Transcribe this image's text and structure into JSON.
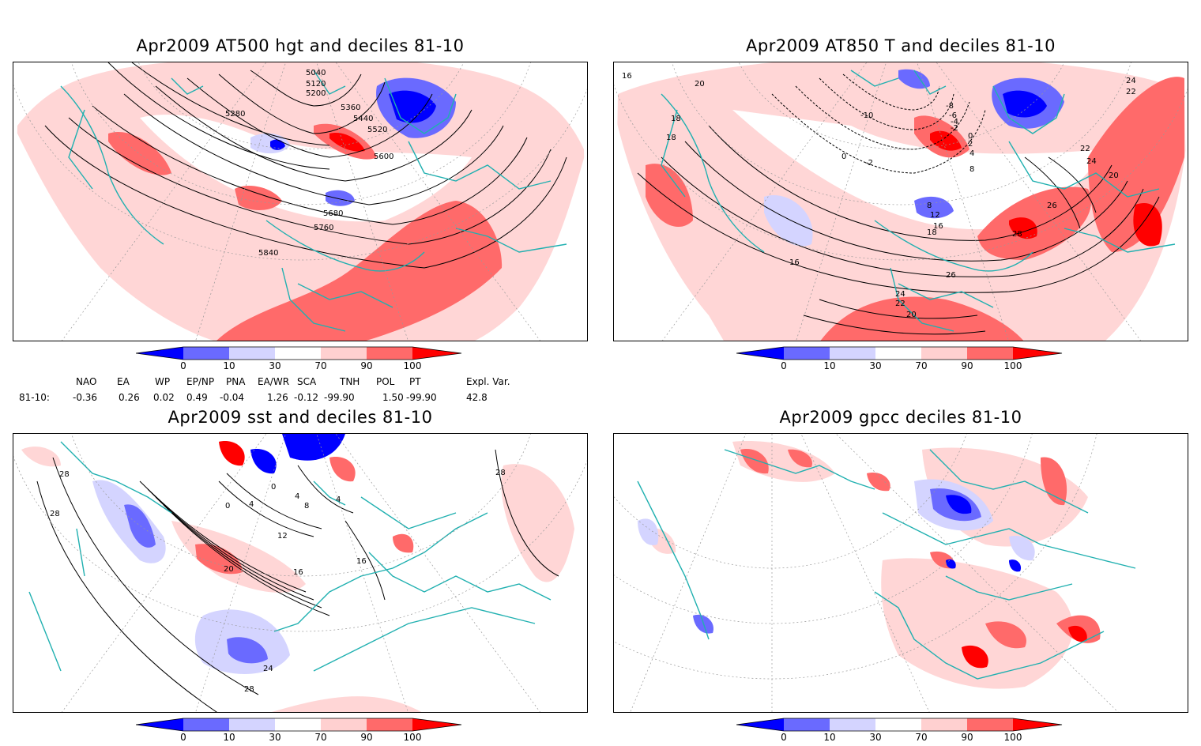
{
  "panels": [
    {
      "title": "Apr2009 AT500 hgt and deciles 81-10",
      "contour_labels": [
        "5040",
        "5120",
        "5200",
        "5280",
        "5360",
        "5440",
        "5520",
        "5600",
        "5680",
        "5760",
        "5840"
      ]
    },
    {
      "title": "Apr2009 AT850 T and deciles 81-10",
      "contour_labels": [
        "16",
        "20",
        "24",
        "22",
        "18",
        "18",
        "-10",
        "-8",
        "-6",
        "-4",
        "-2",
        "0",
        "2",
        "4",
        "8",
        "0",
        "-2",
        "8",
        "12",
        "16",
        "18",
        "16",
        "26",
        "28",
        "26",
        "24",
        "22",
        "20",
        "22",
        "24",
        "20"
      ]
    },
    {
      "title": "Apr2009 sst and deciles 81-10",
      "contour_labels": [
        "28",
        "28",
        "0",
        "4",
        "0",
        "4",
        "8",
        "4",
        "12",
        "16",
        "20",
        "16",
        "24",
        "28",
        "28"
      ]
    },
    {
      "title": "Apr2009 gpcc deciles 81-10",
      "contour_labels": []
    }
  ],
  "colorbar": {
    "labels": [
      "0",
      "10",
      "30",
      "70",
      "90",
      "100"
    ],
    "colors": [
      "#0000ff",
      "#6a6aff",
      "#d4d4ff",
      "#ffffff",
      "#ffd0d0",
      "#ff6a6a",
      "#ff0000"
    ]
  },
  "indices": {
    "headers": [
      "NAO",
      "EA",
      "WP",
      "EP/NP",
      "PNA",
      "EA/WR",
      "SCA",
      "TNH",
      "POL",
      "PT",
      "Expl. Var."
    ],
    "row_label": "81-10:",
    "values": [
      "-0.36",
      "0.26",
      "0.02",
      "0.49",
      "-0.04",
      "1.26",
      "-0.12",
      "-99.90",
      "1.50",
      "-99.90",
      "42.8"
    ]
  },
  "colors": {
    "coast": "#20b0b0",
    "grid": "#999999"
  }
}
